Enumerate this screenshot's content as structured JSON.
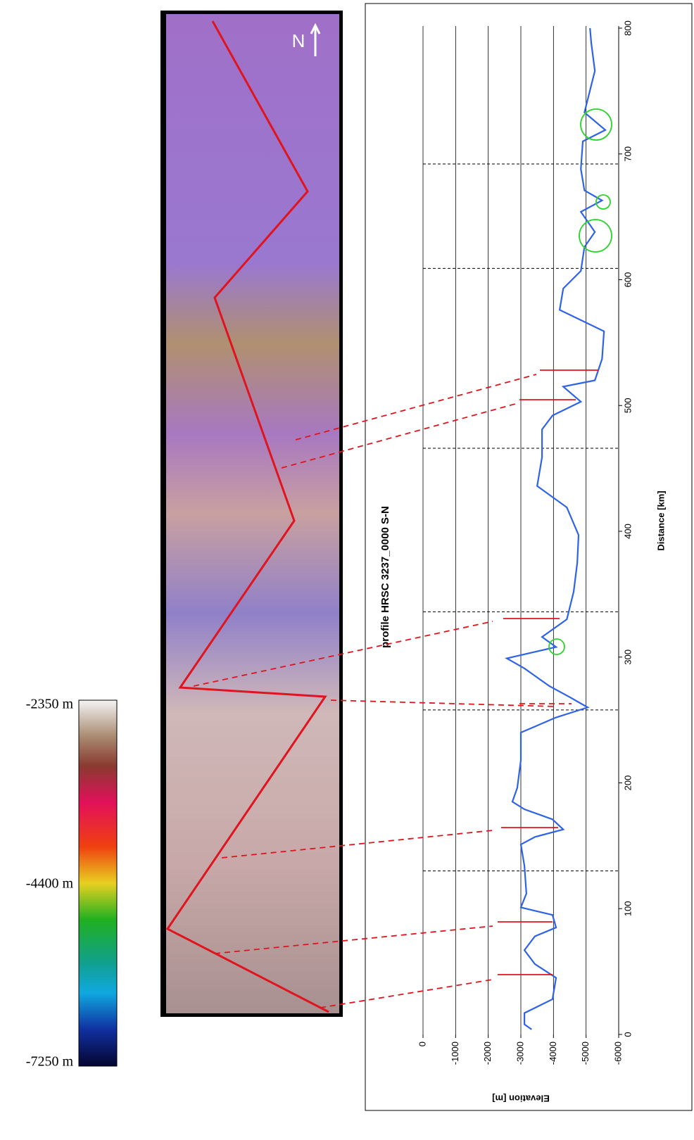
{
  "chart_data": {
    "type": "line",
    "orientation": "rotated",
    "title": "profile HRSC 3237_0000 S-N",
    "x_label": "Distance [km]",
    "y_label": "Elevation [m]",
    "x": [
      4,
      8,
      17,
      28,
      45,
      56,
      67,
      78,
      85,
      95,
      101,
      112,
      134,
      151,
      157,
      163,
      171,
      179,
      185,
      196,
      218,
      240,
      252,
      260,
      268,
      277,
      291,
      299,
      308,
      316,
      330,
      352,
      375,
      397,
      419,
      436,
      459,
      481,
      492,
      503,
      515,
      520,
      537,
      559,
      576,
      593,
      607,
      626,
      638,
      654,
      663,
      671,
      688,
      710,
      719,
      733,
      766,
      788,
      800
    ],
    "values": [
      -3330,
      -3110,
      -3110,
      -3970,
      -4080,
      -3430,
      -3110,
      -3430,
      -4080,
      -3970,
      -3000,
      -3170,
      -3110,
      -3000,
      -3430,
      -4300,
      -3970,
      -3110,
      -2740,
      -2890,
      -3000,
      -3000,
      -4080,
      -5050,
      -4510,
      -3870,
      -3110,
      -2570,
      -4080,
      -3650,
      -4410,
      -4620,
      -4730,
      -4770,
      -4410,
      -3500,
      -3650,
      -3650,
      -3970,
      -4840,
      -4300,
      -5270,
      -5490,
      -5550,
      -4190,
      -4300,
      -4840,
      -4950,
      -5270,
      -4840,
      -5490,
      -4950,
      -4840,
      -4900,
      -5590,
      -4950,
      -5270,
      -5160,
      -5120
    ],
    "color": "#2e63e8",
    "xlim": [
      0,
      800
    ],
    "xticks": [
      0,
      100,
      200,
      300,
      400,
      500,
      600,
      700,
      800
    ],
    "ylim": [
      0,
      -6000
    ],
    "yticks": [
      0,
      -1000,
      -2000,
      -3000,
      -4000,
      -5000,
      -6000
    ],
    "grid": true,
    "boundaries": [
      130,
      258,
      336,
      466,
      609,
      692
    ]
  },
  "colorbar": {
    "labels": [
      "-2350 m",
      "-4400 m",
      "-7250 m"
    ]
  },
  "map": {
    "north": "N"
  }
}
